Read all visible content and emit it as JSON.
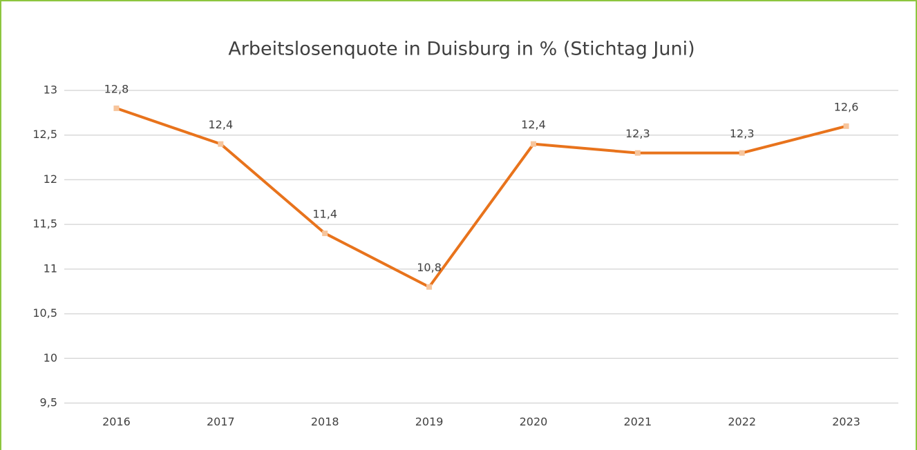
{
  "chart_data": {
    "type": "line",
    "title": "Arbeitslosenquote in Duisburg in % (Stichtag Juni)",
    "categories": [
      "2016",
      "2017",
      "2018",
      "2019",
      "2020",
      "2021",
      "2022",
      "2023"
    ],
    "series": [
      {
        "name": "Arbeitslosenquote",
        "color": "#e8731c",
        "values": [
          12.8,
          12.4,
          11.4,
          10.8,
          12.4,
          12.3,
          12.3,
          12.6
        ],
        "value_labels": [
          "12,8",
          "12,4",
          "11,4",
          "10,8",
          "12,4",
          "12,3",
          "12,3",
          "12,6"
        ]
      }
    ],
    "ylim": [
      9.5,
      13
    ],
    "yticks": [
      {
        "value": 9.5,
        "label": "9,5"
      },
      10,
      {
        "value": 10.5,
        "label": "10,5"
      },
      11,
      {
        "value": 11.5,
        "label": "11,5"
      },
      12,
      {
        "value": 12.5,
        "label": "12,5"
      },
      13
    ],
    "grid": true
  }
}
